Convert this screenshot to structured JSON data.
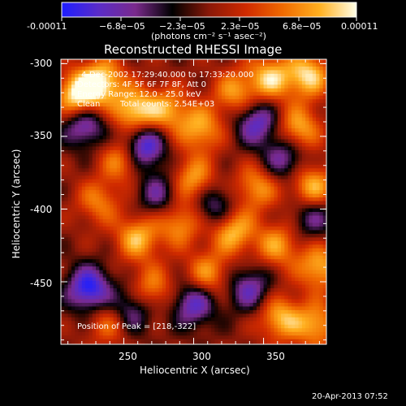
{
  "colorbar": {
    "tick_labels": [
      "-0.00011",
      "−6.8e−05",
      "−2.3e−05",
      "2.3e−05",
      "6.8e−05",
      "0.00011"
    ],
    "unit_label": "(photons cm⁻² s⁻¹ asec⁻²)",
    "colors": [
      "#1e1eff",
      "#5a2cc8",
      "#7a2a8c",
      "#000000",
      "#8a1808",
      "#d02a00",
      "#f06a00",
      "#ffb020",
      "#ffffe8"
    ]
  },
  "annotations": {
    "time_range": "4-Dec-2002 17:29:40.000 to 17:33:20.000",
    "detectors": "Detectors: 4F 5F 6F 7F 8F, Att 0",
    "energy": "Energy Range: 12.0 - 25.0 keV",
    "method": "Clean",
    "counts": "Total counts: 2.54E+03",
    "peak": "Position of Peak = [218,-322]"
  },
  "timestamp": "20-Apr-2013 07:52",
  "chart_data": {
    "type": "heatmap",
    "title": "Reconstructed RHESSI Image",
    "xlabel": "Heliocentric X (arcsec)",
    "ylabel": "Heliocentric Y (arcsec)",
    "xlim": [
      205,
      395
    ],
    "ylim": [
      -493,
      -297
    ],
    "x_ticks": [
      250,
      300,
      350
    ],
    "y_ticks": [
      -300,
      -350,
      -400,
      -450
    ],
    "value_range": [
      -0.00011,
      0.00011
    ],
    "features": [
      {
        "kind": "peak",
        "x": 218,
        "y": -322,
        "strength": 1.0
      },
      {
        "kind": "peak",
        "x": 235,
        "y": -312,
        "strength": 0.8
      },
      {
        "kind": "peak",
        "x": 258,
        "y": -333,
        "strength": 0.85
      },
      {
        "kind": "peak",
        "x": 250,
        "y": -365,
        "strength": 0.7
      },
      {
        "kind": "peak",
        "x": 282,
        "y": -332,
        "strength": 0.6
      },
      {
        "kind": "peak",
        "x": 305,
        "y": -345,
        "strength": 0.65
      },
      {
        "kind": "peak",
        "x": 330,
        "y": -320,
        "strength": 0.6
      },
      {
        "kind": "peak",
        "x": 355,
        "y": -310,
        "strength": 0.75
      },
      {
        "kind": "peak",
        "x": 382,
        "y": -308,
        "strength": 0.8
      },
      {
        "kind": "peak",
        "x": 375,
        "y": -345,
        "strength": 0.7
      },
      {
        "kind": "peak",
        "x": 385,
        "y": -385,
        "strength": 0.75
      },
      {
        "kind": "peak",
        "x": 300,
        "y": -380,
        "strength": 0.65
      },
      {
        "kind": "peak",
        "x": 345,
        "y": -385,
        "strength": 0.6
      },
      {
        "kind": "peak",
        "x": 232,
        "y": -395,
        "strength": 0.5
      },
      {
        "kind": "peak",
        "x": 260,
        "y": -420,
        "strength": 0.7
      },
      {
        "kind": "peak",
        "x": 290,
        "y": -410,
        "strength": 0.6
      },
      {
        "kind": "peak",
        "x": 328,
        "y": -415,
        "strength": 0.75
      },
      {
        "kind": "peak",
        "x": 360,
        "y": -425,
        "strength": 0.6
      },
      {
        "kind": "peak",
        "x": 390,
        "y": -440,
        "strength": 0.7
      },
      {
        "kind": "peak",
        "x": 270,
        "y": -455,
        "strength": 0.55
      },
      {
        "kind": "peak",
        "x": 310,
        "y": -445,
        "strength": 0.6
      },
      {
        "kind": "peak",
        "x": 362,
        "y": -475,
        "strength": 0.7
      },
      {
        "kind": "peak",
        "x": 388,
        "y": -480,
        "strength": 0.65
      },
      {
        "kind": "peak",
        "x": 240,
        "y": -478,
        "strength": 0.5
      },
      {
        "kind": "trough",
        "x": 263,
        "y": -357,
        "strength": 1.0
      },
      {
        "kind": "trough",
        "x": 222,
        "y": -342,
        "strength": 0.7
      },
      {
        "kind": "trough",
        "x": 225,
        "y": -455,
        "strength": 0.9
      },
      {
        "kind": "trough",
        "x": 255,
        "y": -470,
        "strength": 0.6
      },
      {
        "kind": "trough",
        "x": 300,
        "y": -465,
        "strength": 0.7
      },
      {
        "kind": "trough",
        "x": 340,
        "y": -455,
        "strength": 0.6
      },
      {
        "kind": "trough",
        "x": 345,
        "y": -340,
        "strength": 0.7
      },
      {
        "kind": "trough",
        "x": 315,
        "y": -398,
        "strength": 0.55
      },
      {
        "kind": "trough",
        "x": 365,
        "y": -365,
        "strength": 0.6
      },
      {
        "kind": "trough",
        "x": 385,
        "y": -405,
        "strength": 0.5
      },
      {
        "kind": "trough",
        "x": 275,
        "y": -390,
        "strength": 0.5
      }
    ]
  }
}
